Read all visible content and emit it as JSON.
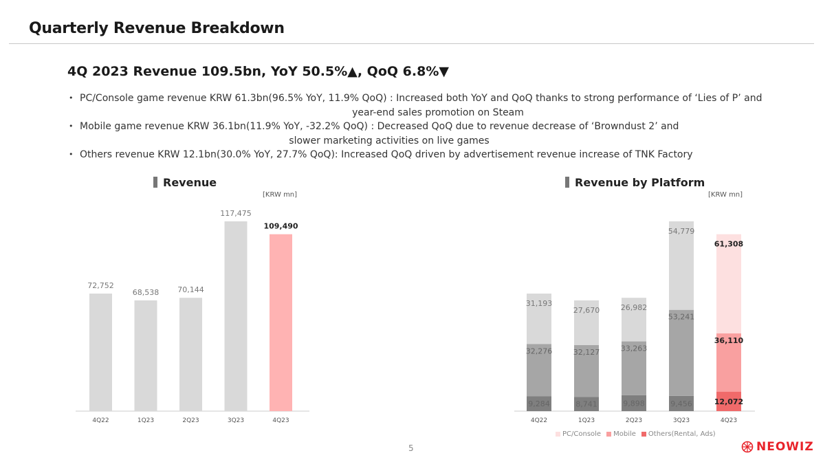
{
  "page": {
    "title": "Quarterly Revenue Breakdown",
    "headline": "4Q 2023 Revenue 109.5bn, YoY 50.5%▲, QoQ 6.8%▼",
    "page_number": "5",
    "logo_text": "NEOWIZ"
  },
  "bullets": [
    {
      "line1": "PC/Console game revenue KRW 61.3bn(96.5% YoY, 11.9% QoQ) : Increased both YoY and QoQ thanks to strong performance of ‘Lies of P’ and",
      "line2": "year-end sales promotion on Steam"
    },
    {
      "line1": "Mobile game revenue KRW 36.1bn(11.9% YoY, -32.2% QoQ) : Decreased QoQ due to revenue decrease of ‘Browndust 2’ and",
      "line2": "slower marketing activities on live games"
    },
    {
      "line1": "Others revenue KRW 12.1bn(30.0% YoY, 27.7% QoQ): Increased QoQ driven by advertisement revenue increase of TNK Factory",
      "line2": ""
    }
  ],
  "colors": {
    "bar_gray": "#d9d9d9",
    "bar_highlight": "#ffb3b3",
    "pc_gray": "#d9d9d9",
    "mobile_gray": "#a6a6a6",
    "others_gray": "#7f7f7f",
    "pc_red": "#fde0e0",
    "mobile_red": "#f9a0a0",
    "others_red": "#f06a6a",
    "logo_red": "#e8232a"
  },
  "chart_data": [
    {
      "type": "bar",
      "title": "Revenue",
      "unit": "[KRW mn]",
      "categories": [
        "4Q22",
        "1Q23",
        "2Q23",
        "3Q23",
        "4Q23"
      ],
      "values": [
        72752,
        68538,
        70144,
        117475,
        109490
      ],
      "labels": [
        "72,752",
        "68,538",
        "70,144",
        "117,475",
        "109,490"
      ],
      "highlight_index": 4,
      "ylim": [
        0,
        120000
      ]
    },
    {
      "type": "bar",
      "stacked": true,
      "title": "Revenue by Platform",
      "unit": "[KRW mn]",
      "categories": [
        "4Q22",
        "1Q23",
        "2Q23",
        "3Q23",
        "4Q23"
      ],
      "series": [
        {
          "name": "Others(Rental, Ads)",
          "values": [
            9284,
            8741,
            9898,
            9456,
            12072
          ],
          "labels": [
            "9,284",
            "8,741",
            "9,898",
            "9,456",
            "12,072"
          ]
        },
        {
          "name": "Mobile",
          "values": [
            32276,
            32127,
            33263,
            53241,
            36110
          ],
          "labels": [
            "32,276",
            "32,127",
            "33,263",
            "53,241",
            "36,110"
          ]
        },
        {
          "name": "PC/Console",
          "values": [
            31193,
            27670,
            26982,
            54779,
            61308
          ],
          "labels": [
            "31,193",
            "27,670",
            "26,982",
            "54,779",
            "61,308"
          ]
        }
      ],
      "legend": [
        "PC/Console",
        "Mobile",
        "Others(Rental, Ads)"
      ],
      "highlight_index": 4,
      "ylim": [
        0,
        120000
      ]
    }
  ]
}
